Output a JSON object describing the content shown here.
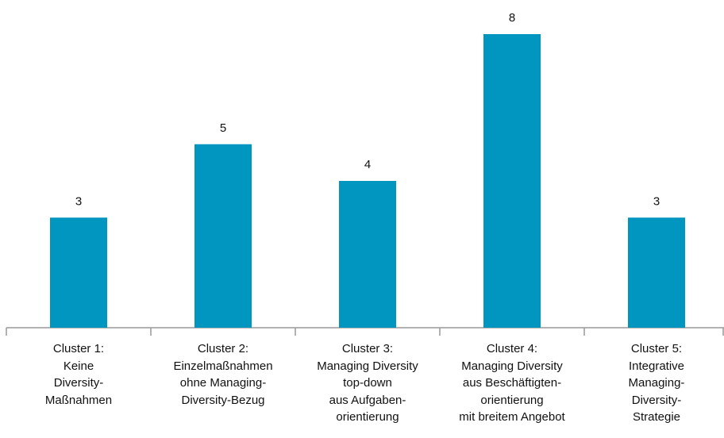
{
  "chart_data": {
    "type": "bar",
    "categories": [
      "Cluster 1:\nKeine\nDiversity-\nMaßnahmen",
      "Cluster 2:\nEinzelmaßnahmen\nohne Managing-\nDiversity-Bezug",
      "Cluster 3:\nManaging Diversity\ntop-down\naus Aufgaben-\norientierung",
      "Cluster 4:\nManaging Diversity\naus Beschäftigten-\norientierung\nmit breitem Angebot",
      "Cluster 5:\nIntegrative\nManaging-\nDiversity-\nStrategie"
    ],
    "values": [
      3,
      5,
      4,
      8,
      3
    ],
    "color": "#0096bf",
    "ylim": [
      0,
      8
    ]
  }
}
